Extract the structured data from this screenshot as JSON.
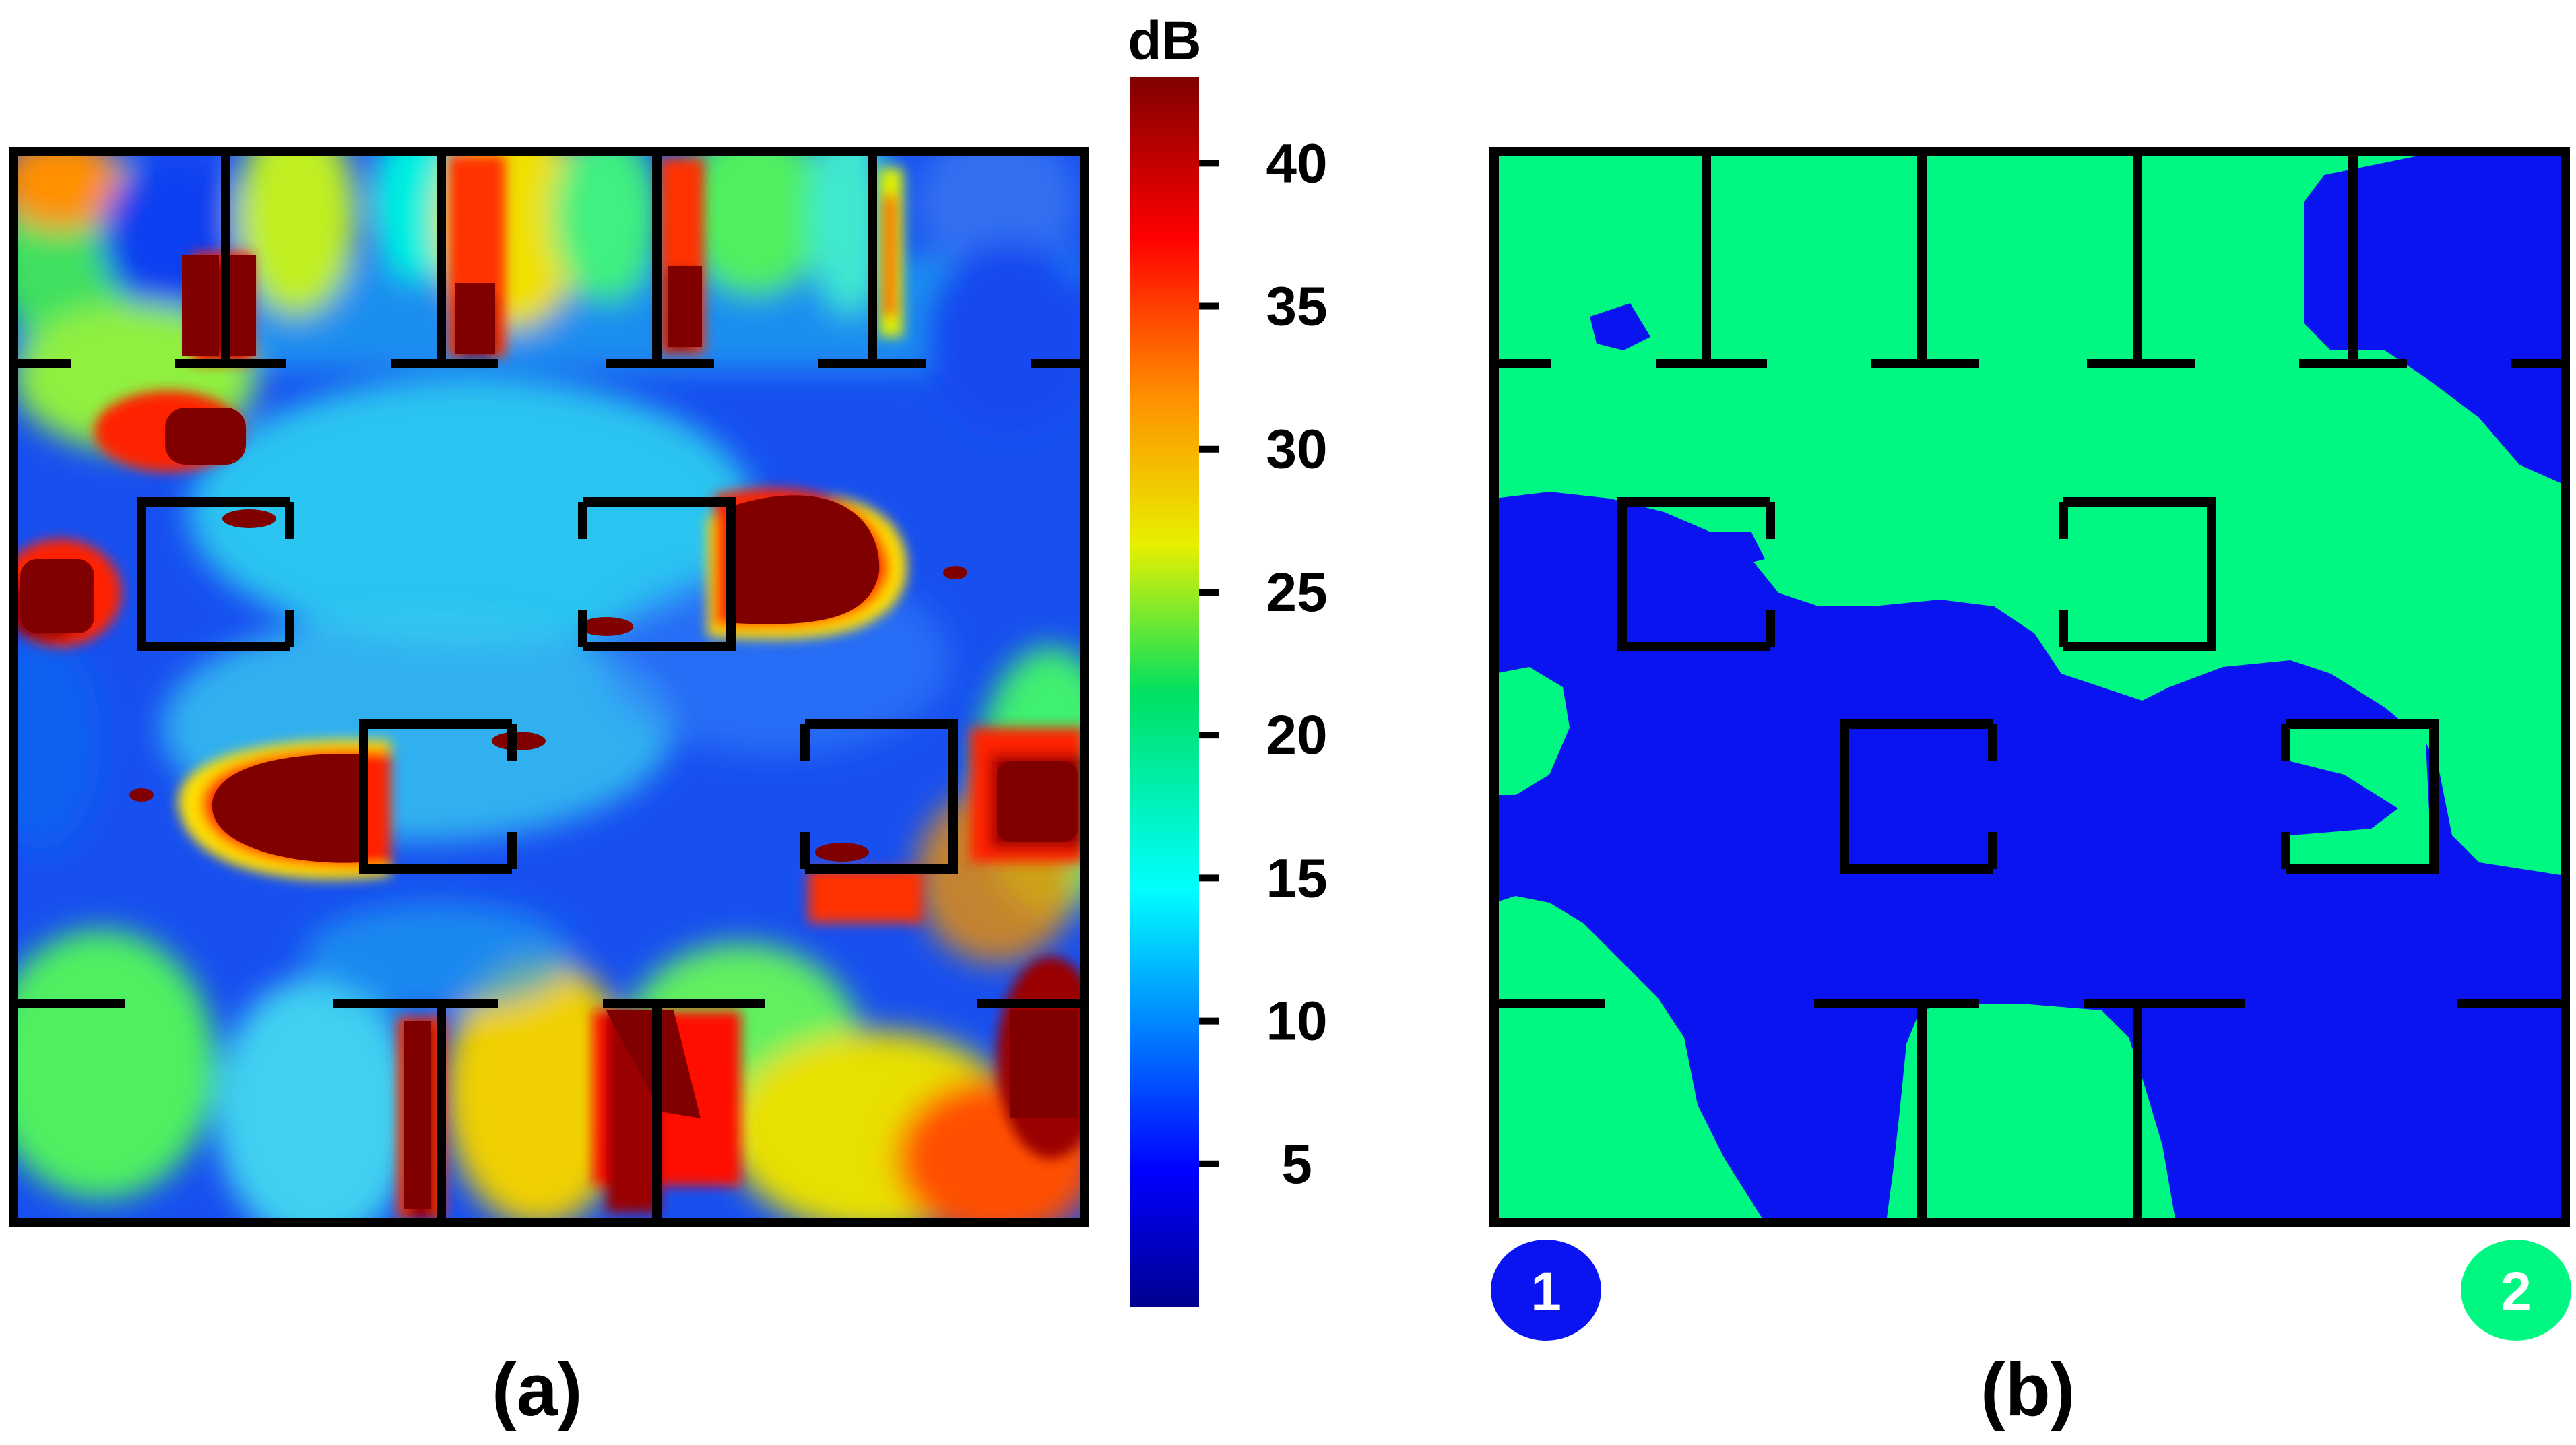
{
  "captions": {
    "a": "(a)",
    "b": "(b)"
  },
  "chart_data": [
    {
      "type": "heatmap",
      "panel": "(a)",
      "colorbar": {
        "unit_label": "dB",
        "range": [
          0,
          43
        ],
        "ticks": [
          5,
          10,
          15,
          20,
          25,
          30,
          35,
          40
        ],
        "tick_labels": [
          "5",
          "10",
          "15",
          "20",
          "25",
          "30",
          "35",
          "40"
        ],
        "colormap": "jet"
      }
    },
    {
      "type": "heatmap",
      "panel": "(b)",
      "categories": [
        "1",
        "2"
      ],
      "colors": {
        "1": "#0a14f0",
        "2": "#00f882"
      }
    }
  ]
}
